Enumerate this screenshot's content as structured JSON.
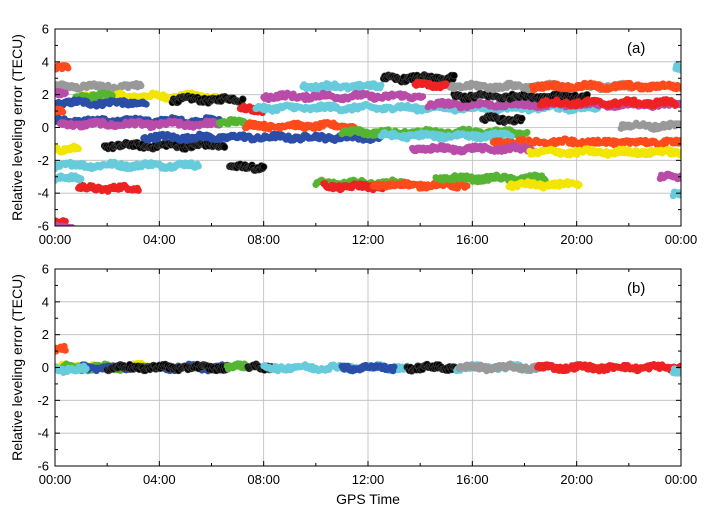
{
  "chart_data": [
    {
      "type": "scatter",
      "panel_label": "(a)",
      "ylabel": "Relative leveling error (TECU)",
      "xlabel": "",
      "x_unit": "hours",
      "xlim": [
        0,
        24
      ],
      "ylim": [
        -6,
        6
      ],
      "x_ticks": [
        0,
        4,
        8,
        12,
        16,
        20,
        24
      ],
      "x_tick_labels": [
        "00:00",
        "04:00",
        "08:00",
        "12:00",
        "16:00",
        "20:00",
        "00:00"
      ],
      "y_ticks": [
        -6,
        -4,
        -2,
        0,
        2,
        4,
        6
      ],
      "y_tick_labels": [
        "-6",
        "-4",
        "-2",
        "0",
        "2",
        "4",
        "6"
      ],
      "grid": true,
      "arcs": [
        {
          "color": "#ff4a1c",
          "start": 0.0,
          "end": 0.5,
          "value": 3.6
        },
        {
          "color": "#999999",
          "start": 0.0,
          "end": 3.3,
          "value": 2.5
        },
        {
          "color": "#f2e600",
          "start": 1.0,
          "end": 6.2,
          "value": 1.9
        },
        {
          "color": "#55b533",
          "start": 0.8,
          "end": 2.2,
          "value": 1.9
        },
        {
          "color": "#2b4ea8",
          "start": 0.0,
          "end": 3.5,
          "value": 1.5
        },
        {
          "color": "#000000",
          "start": 4.5,
          "end": 7.2,
          "value": 1.7
        },
        {
          "color": "#ff4a1c",
          "start": 0.0,
          "end": 0.3,
          "value": 1.0
        },
        {
          "color": "#2b4ea8",
          "start": 0.0,
          "end": 6.3,
          "value": 0.4
        },
        {
          "color": "#b94ca9",
          "start": 0.2,
          "end": 6.3,
          "value": 0.2
        },
        {
          "color": "#b94ca9",
          "start": 0.0,
          "end": 0.4,
          "value": 2.1
        },
        {
          "color": "#f2e600",
          "start": 0.0,
          "end": 0.9,
          "value": -1.3
        },
        {
          "color": "#66cbdb",
          "start": 0.0,
          "end": 5.5,
          "value": -2.3
        },
        {
          "color": "#66cbdb",
          "start": 0.0,
          "end": 1.0,
          "value": -3.1
        },
        {
          "color": "#ee2222",
          "start": 0.9,
          "end": 3.2,
          "value": -3.7
        },
        {
          "color": "#ee2222",
          "start": 0.0,
          "end": 0.4,
          "value": -5.8
        },
        {
          "color": "#b94ca9",
          "start": 0.0,
          "end": 0.7,
          "value": -6.1
        },
        {
          "color": "#000000",
          "start": 1.9,
          "end": 6.5,
          "value": -1.1
        },
        {
          "color": "#2b4ea8",
          "start": 3.4,
          "end": 12.5,
          "value": -0.6
        },
        {
          "color": "#55b533",
          "start": 6.3,
          "end": 7.6,
          "value": 0.3
        },
        {
          "color": "#ff4a1c",
          "start": 7.3,
          "end": 11.5,
          "value": 0.1
        },
        {
          "color": "#ee2222",
          "start": 7.1,
          "end": 8.0,
          "value": 1.1
        },
        {
          "color": "#66cbdb",
          "start": 7.7,
          "end": 20.8,
          "value": 1.2
        },
        {
          "color": "#66cbdb",
          "start": 9.5,
          "end": 12.5,
          "value": 2.5
        },
        {
          "color": "#b94ca9",
          "start": 8.0,
          "end": 14.1,
          "value": 1.9
        },
        {
          "color": "#b94ca9",
          "start": 14.3,
          "end": 24.0,
          "value": 1.4
        },
        {
          "color": "#000000",
          "start": 6.7,
          "end": 8.0,
          "value": -2.4
        },
        {
          "color": "#55b533",
          "start": 10.0,
          "end": 13.3,
          "value": -3.4
        },
        {
          "color": "#ee2222",
          "start": 10.3,
          "end": 12.6,
          "value": -3.6
        },
        {
          "color": "#ff4a1c",
          "start": 12.2,
          "end": 15.8,
          "value": -3.5
        },
        {
          "color": "#55b533",
          "start": 14.6,
          "end": 18.8,
          "value": -3.1
        },
        {
          "color": "#f2e600",
          "start": 17.4,
          "end": 20.1,
          "value": -3.5
        },
        {
          "color": "#55b533",
          "start": 11.0,
          "end": 18.1,
          "value": -0.3
        },
        {
          "color": "#66cbdb",
          "start": 12.5,
          "end": 17.5,
          "value": -0.5
        },
        {
          "color": "#000000",
          "start": 12.6,
          "end": 15.3,
          "value": 3.0
        },
        {
          "color": "#000000",
          "start": 15.3,
          "end": 20.4,
          "value": 1.9
        },
        {
          "color": "#999999",
          "start": 15.1,
          "end": 22.1,
          "value": 2.5
        },
        {
          "color": "#ff4a1c",
          "start": 18.3,
          "end": 24.0,
          "value": 2.5
        },
        {
          "color": "#ee2222",
          "start": 18.6,
          "end": 23.8,
          "value": 1.5
        },
        {
          "color": "#000000",
          "start": 16.4,
          "end": 17.9,
          "value": 0.5
        },
        {
          "color": "#ee2222",
          "start": 13.8,
          "end": 15.0,
          "value": 2.6
        },
        {
          "color": "#ff4a1c",
          "start": 16.8,
          "end": 24.0,
          "value": -0.9
        },
        {
          "color": "#b94ca9",
          "start": 13.7,
          "end": 18.4,
          "value": -1.3
        },
        {
          "color": "#f2e600",
          "start": 18.2,
          "end": 24.0,
          "value": -1.5
        },
        {
          "color": "#999999",
          "start": 21.7,
          "end": 24.0,
          "value": 0.1
        },
        {
          "color": "#b94ca9",
          "start": 23.2,
          "end": 24.0,
          "value": -3.0
        },
        {
          "color": "#66cbdb",
          "start": 23.7,
          "end": 24.0,
          "value": -4.1
        },
        {
          "color": "#66cbdb",
          "start": 23.8,
          "end": 24.0,
          "value": 3.6
        }
      ]
    },
    {
      "type": "scatter",
      "panel_label": "(b)",
      "ylabel": "Relative leveling error (TECU)",
      "xlabel": "GPS Time",
      "x_unit": "hours",
      "xlim": [
        0,
        24
      ],
      "ylim": [
        -6,
        6
      ],
      "x_ticks": [
        0,
        4,
        8,
        12,
        16,
        20,
        24
      ],
      "x_tick_labels": [
        "00:00",
        "04:00",
        "08:00",
        "12:00",
        "16:00",
        "20:00",
        "00:00"
      ],
      "y_ticks": [
        -6,
        -4,
        -2,
        0,
        2,
        4,
        6
      ],
      "y_tick_labels": [
        "-6",
        "-4",
        "-2",
        "0",
        "2",
        "4",
        "6"
      ],
      "grid": true,
      "arcs": [
        {
          "color": "#f2e600",
          "start": 0.0,
          "end": 3.5,
          "value": 0.05
        },
        {
          "color": "#55b533",
          "start": 0.3,
          "end": 2.5,
          "value": 0.0
        },
        {
          "color": "#2b4ea8",
          "start": 1.0,
          "end": 6.5,
          "value": 0.0
        },
        {
          "color": "#66cbdb",
          "start": 0.0,
          "end": 1.2,
          "value": -0.1
        },
        {
          "color": "#ff4a1c",
          "start": 0.0,
          "end": 0.4,
          "value": 1.2
        },
        {
          "color": "#000000",
          "start": 2.0,
          "end": 6.6,
          "value": 0.0
        },
        {
          "color": "#55b533",
          "start": 6.6,
          "end": 7.4,
          "value": 0.05
        },
        {
          "color": "#000000",
          "start": 7.4,
          "end": 8.3,
          "value": 0.0
        },
        {
          "color": "#66cbdb",
          "start": 8.0,
          "end": 13.5,
          "value": 0.0
        },
        {
          "color": "#2b4ea8",
          "start": 11.0,
          "end": 13.0,
          "value": 0.0
        },
        {
          "color": "#000000",
          "start": 13.5,
          "end": 15.4,
          "value": 0.0
        },
        {
          "color": "#66cbdb",
          "start": 15.4,
          "end": 18.5,
          "value": 0.0
        },
        {
          "color": "#999999",
          "start": 15.5,
          "end": 19.0,
          "value": 0.0
        },
        {
          "color": "#ee2222",
          "start": 18.5,
          "end": 24.0,
          "value": 0.0
        },
        {
          "color": "#66cbdb",
          "start": 23.7,
          "end": 24.0,
          "value": -0.3
        }
      ]
    }
  ]
}
